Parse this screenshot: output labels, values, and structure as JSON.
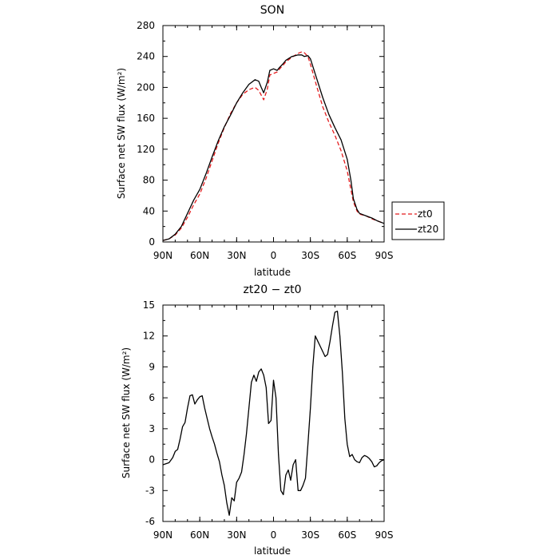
{
  "chart_data": [
    {
      "type": "line",
      "title": "SON",
      "xlabel": "latitude",
      "ylabel": "Surface net SW flux (W/m²)",
      "xlim": [
        90,
        -90
      ],
      "ylim": [
        0,
        280
      ],
      "x_ticks": [
        90,
        60,
        30,
        0,
        -30,
        -60,
        -90
      ],
      "x_tick_labels": [
        "90N",
        "60N",
        "30N",
        "0",
        "30S",
        "60S",
        "90S"
      ],
      "y_ticks": [
        0,
        40,
        80,
        120,
        160,
        200,
        240,
        280
      ],
      "y_tick_labels": [
        "0",
        "40",
        "80",
        "120",
        "160",
        "200",
        "240",
        "280"
      ],
      "legend": {
        "placement": "right"
      },
      "series": [
        {
          "name": "zt0",
          "color": "#e41a1c",
          "dash": "dashed",
          "x": [
            90,
            85,
            80,
            75,
            70,
            65,
            60,
            55,
            50,
            45,
            40,
            35,
            30,
            25,
            20,
            15,
            12,
            10,
            8,
            5,
            3,
            0,
            -3,
            -5,
            -8,
            -10,
            -15,
            -20,
            -23,
            -25,
            -28,
            -30,
            -35,
            -40,
            -45,
            -50,
            -55,
            -60,
            -63,
            -65,
            -68,
            -70,
            -75,
            -80,
            -85,
            -90
          ],
          "y": [
            2,
            4,
            9,
            18,
            32,
            48,
            62,
            82,
            105,
            128,
            148,
            166,
            180,
            191,
            197,
            200,
            196,
            190,
            184,
            198,
            216,
            218,
            220,
            224,
            229,
            233,
            239,
            244,
            246,
            245,
            240,
            230,
            202,
            175,
            155,
            138,
            118,
            92,
            68,
            52,
            40,
            36,
            34,
            30,
            27,
            24
          ]
        },
        {
          "name": "zt20",
          "color": "#000000",
          "dash": "solid",
          "x": [
            90,
            85,
            80,
            75,
            70,
            65,
            60,
            55,
            50,
            45,
            40,
            35,
            30,
            25,
            20,
            15,
            12,
            10,
            8,
            5,
            3,
            0,
            -3,
            -5,
            -8,
            -10,
            -15,
            -20,
            -23,
            -25,
            -28,
            -30,
            -35,
            -40,
            -45,
            -50,
            -55,
            -60,
            -63,
            -65,
            -68,
            -70,
            -75,
            -80,
            -85,
            -90
          ],
          "y": [
            2,
            4,
            10,
            20,
            37,
            54,
            68,
            88,
            110,
            131,
            149,
            164,
            180,
            193,
            204,
            210,
            208,
            200,
            193,
            207,
            222,
            224,
            222,
            226,
            231,
            235,
            240,
            242,
            242,
            240,
            241,
            237,
            212,
            187,
            165,
            148,
            132,
            107,
            80,
            56,
            42,
            37,
            34,
            31,
            27,
            24
          ]
        }
      ]
    },
    {
      "type": "line",
      "title": "zt20 − zt0",
      "xlabel": "latitude",
      "ylabel": "Surface net SW flux (W/m²)",
      "xlim": [
        90,
        -90
      ],
      "ylim": [
        -6,
        15
      ],
      "x_ticks": [
        90,
        60,
        30,
        0,
        -30,
        -60,
        -90
      ],
      "x_tick_labels": [
        "90N",
        "60N",
        "30N",
        "0",
        "30S",
        "60S",
        "90S"
      ],
      "y_ticks": [
        -6,
        -3,
        0,
        3,
        6,
        9,
        12,
        15
      ],
      "y_tick_labels": [
        "-6",
        "-3",
        "0",
        "3",
        "6",
        "9",
        "12",
        "15"
      ],
      "series": [
        {
          "color": "#000000",
          "dash": "solid",
          "x": [
            90,
            85,
            82,
            80,
            78,
            76,
            74,
            72,
            70,
            68,
            66,
            64,
            62,
            60,
            58,
            56,
            54,
            52,
            50,
            48,
            46,
            44,
            42,
            40,
            38,
            36,
            34,
            32,
            30,
            28,
            26,
            24,
            22,
            20,
            18,
            16,
            14,
            12,
            10,
            8,
            6,
            4,
            2,
            0,
            -2,
            -4,
            -6,
            -8,
            -10,
            -12,
            -14,
            -16,
            -18,
            -20,
            -22,
            -24,
            -26,
            -28,
            -30,
            -32,
            -34,
            -36,
            -38,
            -40,
            -42,
            -44,
            -46,
            -48,
            -50,
            -52,
            -54,
            -56,
            -58,
            -60,
            -62,
            -64,
            -66,
            -68,
            -70,
            -72,
            -74,
            -76,
            -78,
            -80,
            -82,
            -84,
            -86,
            -88,
            -90
          ],
          "y": [
            -0.5,
            -0.3,
            0.2,
            0.8,
            1.0,
            2.0,
            3.2,
            3.6,
            5.0,
            6.2,
            6.3,
            5.4,
            5.8,
            6.1,
            6.2,
            5.0,
            4.0,
            3.0,
            2.2,
            1.5,
            0.6,
            -0.2,
            -1.5,
            -2.5,
            -4.2,
            -5.4,
            -3.7,
            -4.0,
            -2.2,
            -1.8,
            -1.2,
            0.5,
            2.5,
            5.0,
            7.5,
            8.2,
            7.6,
            8.5,
            8.8,
            8.2,
            7.0,
            3.5,
            3.8,
            7.7,
            6.0,
            0.5,
            -3.0,
            -3.4,
            -1.5,
            -1.0,
            -2.0,
            -0.5,
            0.0,
            -3.0,
            -3.0,
            -2.5,
            -1.8,
            1.5,
            5.0,
            9.0,
            12.0,
            11.5,
            11.0,
            10.5,
            10.0,
            10.2,
            11.5,
            13.0,
            14.3,
            14.4,
            12.0,
            8.5,
            4.0,
            1.5,
            0.3,
            0.5,
            0.0,
            -0.2,
            -0.3,
            0.2,
            0.4,
            0.3,
            0.1,
            -0.2,
            -0.7,
            -0.6,
            -0.3,
            -0.1,
            0.0
          ]
        }
      ]
    }
  ]
}
